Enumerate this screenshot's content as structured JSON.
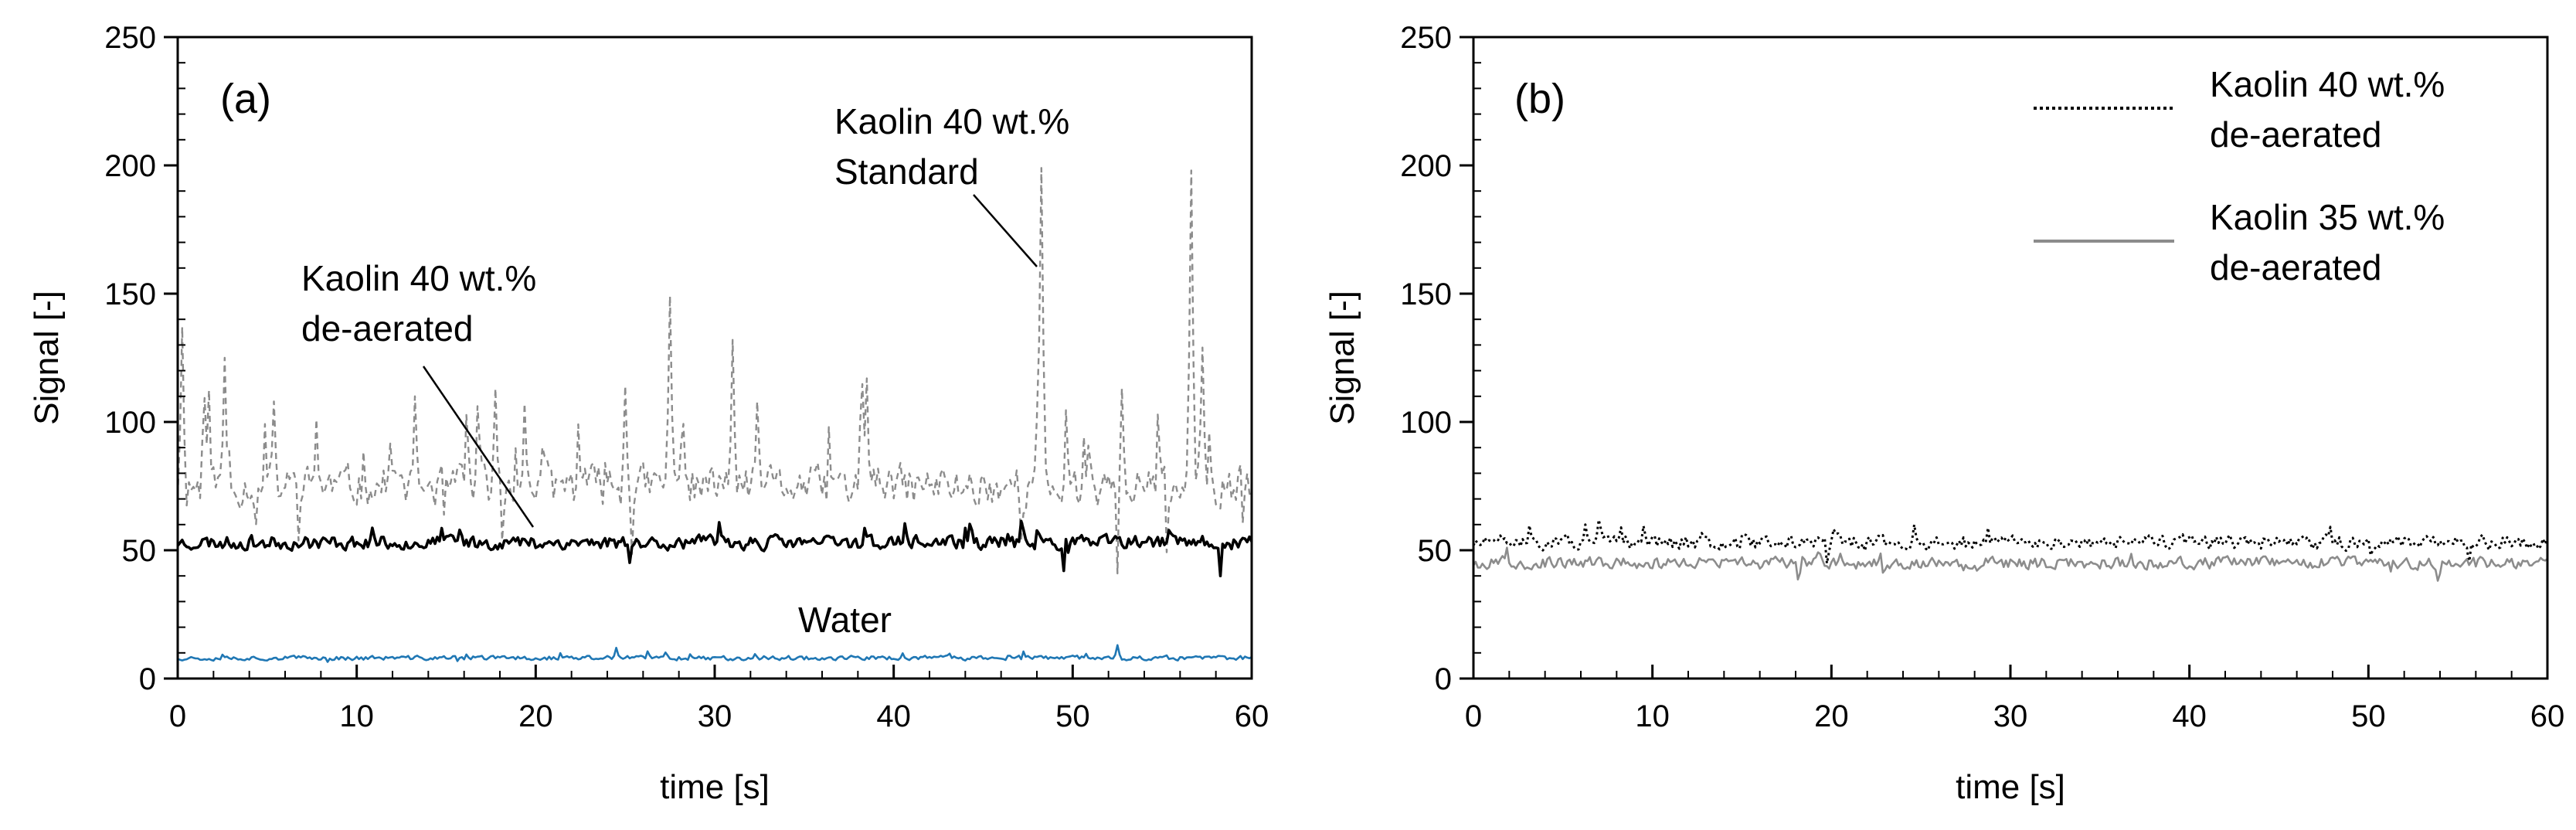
{
  "chart_data": [
    {
      "panel_label": "(a)",
      "type": "line",
      "xlabel": "time [s]",
      "ylabel": "Signal [-]",
      "xlim": [
        0,
        60
      ],
      "ylim": [
        0,
        250
      ],
      "xticks": [
        0,
        10,
        20,
        30,
        40,
        50,
        60
      ],
      "yticks": [
        0,
        50,
        100,
        150,
        200,
        250
      ],
      "grid": false,
      "series": [
        {
          "name": "Kaolin 40 wt.% Standard",
          "style": "dashed",
          "color": "#8c8c8c",
          "mean": 75,
          "spikes": [
            [
              0.3,
              137
            ],
            [
              2.6,
              125
            ],
            [
              5.4,
              108
            ],
            [
              7.7,
              101
            ],
            [
              13.3,
              110
            ],
            [
              17.8,
              113
            ],
            [
              25.0,
              114
            ],
            [
              27.5,
              149
            ],
            [
              31.0,
              132
            ],
            [
              38.5,
              117
            ],
            [
              48.3,
              199
            ],
            [
              52.8,
              113
            ],
            [
              56.6,
              198
            ],
            [
              57.2,
              129
            ]
          ]
        },
        {
          "name": "Kaolin 40 wt.% de-aerated",
          "style": "solid",
          "color": "#000000",
          "mean": 53,
          "dips": [
            [
              49.5,
              42
            ],
            [
              58.3,
              40
            ]
          ]
        },
        {
          "name": "Water",
          "style": "solid",
          "color": "#1f77b4",
          "mean": 8,
          "spikes": [
            [
              24.5,
              12
            ],
            [
              52.5,
              13
            ]
          ]
        }
      ],
      "annotations": [
        {
          "lines": [
            "Kaolin 40 wt.%",
            "Standard"
          ],
          "points_to": [
            48.3,
            160
          ]
        },
        {
          "lines": [
            "Kaolin 40 wt.%",
            "de-aerated"
          ],
          "points_to": [
            20.0,
            60
          ]
        },
        {
          "lines": [
            "Water"
          ]
        }
      ]
    },
    {
      "panel_label": "(b)",
      "type": "line",
      "xlabel": "time [s]",
      "ylabel": "Signal [-]",
      "xlim": [
        0,
        60
      ],
      "ylim": [
        0,
        250
      ],
      "xticks": [
        0,
        10,
        20,
        30,
        40,
        50,
        60
      ],
      "yticks": [
        0,
        50,
        100,
        150,
        200,
        250
      ],
      "grid": false,
      "legend_position": "top-right",
      "series": [
        {
          "name": "Kaolin 40 wt.% de-aerated",
          "legend_lines": [
            "Kaolin 40 wt.%",
            "de-aerated"
          ],
          "style": "dotted",
          "color": "#000000",
          "mean": 53
        },
        {
          "name": "Kaolin 35 wt.% de-aerated",
          "legend_lines": [
            "Kaolin 35 wt.%",
            "de-aerated"
          ],
          "style": "solid",
          "color": "#8c8c8c",
          "mean": 45
        }
      ]
    }
  ]
}
